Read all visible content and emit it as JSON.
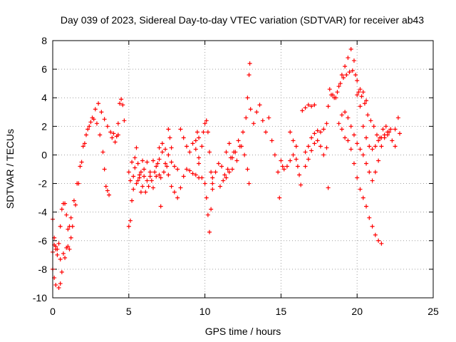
{
  "chart_data": {
    "type": "scatter",
    "title": "Day 039 of 2023, Sidereal Day-to-day VTEC variation (SDTVAR) for receiver ab43",
    "xlabel": "GPS time / hours",
    "ylabel": "SDTVAR / TECUs",
    "xlim": [
      0,
      25
    ],
    "ylim": [
      -10,
      8
    ],
    "xticks": [
      0,
      5,
      10,
      15,
      20,
      25
    ],
    "yticks": [
      -10,
      -8,
      -6,
      -4,
      -2,
      0,
      2,
      4,
      6,
      8
    ],
    "grid": true,
    "marker": "+",
    "marker_color": "#ff0000",
    "series": [
      {
        "name": "SDTVAR",
        "points": [
          [
            0.0,
            -4.5
          ],
          [
            0.1,
            -5.8
          ],
          [
            0.2,
            -6.4
          ],
          [
            0.3,
            -6.6
          ],
          [
            0.4,
            -6.2
          ],
          [
            0.5,
            -5.0
          ],
          [
            0.6,
            -3.8
          ],
          [
            0.7,
            -3.4
          ],
          [
            0.8,
            -3.4
          ],
          [
            0.9,
            -4.2
          ],
          [
            1.0,
            -5.2
          ],
          [
            1.1,
            -5.0
          ],
          [
            1.2,
            -4.4
          ],
          [
            1.4,
            -3.2
          ],
          [
            1.6,
            -2.0
          ],
          [
            1.8,
            -0.8
          ],
          [
            2.0,
            0.6
          ],
          [
            2.2,
            1.4
          ],
          [
            2.4,
            2.0
          ],
          [
            2.6,
            2.6
          ],
          [
            2.8,
            3.2
          ],
          [
            3.0,
            3.6
          ],
          [
            3.2,
            3.0
          ],
          [
            3.4,
            2.5
          ],
          [
            3.6,
            2.0
          ],
          [
            3.8,
            1.6
          ],
          [
            4.0,
            1.5
          ],
          [
            4.2,
            1.3
          ],
          [
            4.3,
            2.2
          ],
          [
            4.4,
            3.6
          ],
          [
            4.5,
            3.9
          ],
          [
            4.6,
            3.5
          ],
          [
            4.7,
            2.4
          ],
          [
            0.0,
            -8.0
          ],
          [
            0.1,
            -8.6
          ],
          [
            0.2,
            -9.1
          ],
          [
            0.4,
            -9.3
          ],
          [
            0.5,
            -9.0
          ],
          [
            0.6,
            -8.2
          ],
          [
            0.8,
            -7.2
          ],
          [
            1.0,
            -6.4
          ],
          [
            1.2,
            -5.8
          ],
          [
            0.0,
            -6.8
          ],
          [
            0.1,
            -6.3
          ],
          [
            0.2,
            -6.6
          ],
          [
            0.3,
            -7.0
          ],
          [
            0.5,
            -7.3
          ],
          [
            0.7,
            -6.9
          ],
          [
            0.9,
            -6.5
          ],
          [
            1.1,
            -6.6
          ],
          [
            1.3,
            -5.0
          ],
          [
            1.5,
            -3.5
          ],
          [
            1.7,
            -2.0
          ],
          [
            1.9,
            -0.5
          ],
          [
            2.1,
            0.8
          ],
          [
            2.3,
            1.8
          ],
          [
            2.5,
            2.3
          ],
          [
            2.7,
            2.5
          ],
          [
            2.9,
            2.2
          ],
          [
            3.1,
            1.4
          ],
          [
            3.3,
            0.2
          ],
          [
            3.4,
            -1.0
          ],
          [
            3.5,
            -2.2
          ],
          [
            3.6,
            -2.5
          ],
          [
            3.7,
            -2.8
          ],
          [
            3.9,
            1.2
          ],
          [
            4.1,
            0.9
          ],
          [
            4.3,
            1.4
          ],
          [
            5.0,
            -5.0
          ],
          [
            5.1,
            -4.6
          ],
          [
            5.2,
            -3.2
          ],
          [
            5.3,
            -1.5
          ],
          [
            5.4,
            -0.2
          ],
          [
            5.5,
            0.5
          ],
          [
            5.6,
            -0.6
          ],
          [
            5.7,
            -1.6
          ],
          [
            5.8,
            -1.2
          ],
          [
            5.9,
            -0.4
          ],
          [
            6.0,
            -1.0
          ],
          [
            6.2,
            -1.8
          ],
          [
            6.4,
            -1.2
          ],
          [
            6.6,
            -0.4
          ],
          [
            6.8,
            -0.8
          ],
          [
            7.0,
            -1.4
          ],
          [
            7.1,
            -3.6
          ],
          [
            5.0,
            -1.2
          ],
          [
            5.1,
            -1.8
          ],
          [
            5.3,
            -2.4
          ],
          [
            5.5,
            -2.0
          ],
          [
            5.7,
            -1.4
          ],
          [
            5.9,
            -2.2
          ],
          [
            6.1,
            -2.6
          ],
          [
            6.3,
            -2.2
          ],
          [
            6.5,
            -1.8
          ],
          [
            6.7,
            -1.2
          ],
          [
            6.9,
            -0.6
          ],
          [
            7.1,
            -1.6
          ],
          [
            7.3,
            -1.2
          ],
          [
            7.5,
            -0.8
          ],
          [
            5.2,
            -0.5
          ],
          [
            5.4,
            -0.9
          ],
          [
            5.6,
            -1.8
          ],
          [
            5.8,
            -2.6
          ],
          [
            6.0,
            -1.5
          ],
          [
            6.2,
            -0.5
          ],
          [
            6.4,
            -1.5
          ],
          [
            6.6,
            -2.3
          ],
          [
            6.8,
            -1.5
          ],
          [
            7.0,
            -0.3
          ],
          [
            7.0,
            0.5
          ],
          [
            7.2,
            0.2
          ],
          [
            7.4,
            -0.6
          ],
          [
            7.6,
            -1.4
          ],
          [
            7.8,
            -2.2
          ],
          [
            8.0,
            -2.6
          ],
          [
            8.2,
            -3.0
          ],
          [
            8.4,
            -2.3
          ],
          [
            8.6,
            -1.5
          ],
          [
            8.8,
            -1.0
          ],
          [
            9.0,
            -1.1
          ],
          [
            9.2,
            -1.3
          ],
          [
            9.4,
            -1.4
          ],
          [
            9.6,
            -1.6
          ],
          [
            7.2,
            0.8
          ],
          [
            7.4,
            0.4
          ],
          [
            7.6,
            0.0
          ],
          [
            7.8,
            -0.5
          ],
          [
            8.0,
            -0.8
          ],
          [
            8.2,
            -1.0
          ],
          [
            7.6,
            1.8
          ],
          [
            7.7,
            1.2
          ],
          [
            7.8,
            0.5
          ],
          [
            8.4,
            1.8
          ],
          [
            8.6,
            1.2
          ],
          [
            8.8,
            0.6
          ],
          [
            9.0,
            0.2
          ],
          [
            9.2,
            0.8
          ],
          [
            9.4,
            0.4
          ],
          [
            9.6,
            -0.6
          ],
          [
            9.8,
            -1.6
          ],
          [
            10.0,
            -2.0
          ],
          [
            10.1,
            -3.0
          ],
          [
            10.2,
            -4.2
          ],
          [
            10.3,
            -5.4
          ],
          [
            10.4,
            -3.8
          ],
          [
            10.5,
            -2.0
          ],
          [
            9.4,
            1.0
          ],
          [
            9.5,
            1.6
          ],
          [
            9.6,
            1.2
          ],
          [
            9.6,
            -0.2
          ],
          [
            9.8,
            0.6
          ],
          [
            9.9,
            1.6
          ],
          [
            10.0,
            2.2
          ],
          [
            10.1,
            2.4
          ],
          [
            10.2,
            1.6
          ],
          [
            10.3,
            0.2
          ],
          [
            10.4,
            -1.2
          ],
          [
            10.5,
            -2.4
          ],
          [
            10.5,
            -1.6
          ],
          [
            10.7,
            -1.2
          ],
          [
            10.9,
            -0.6
          ],
          [
            11.1,
            -0.8
          ],
          [
            11.3,
            -1.4
          ],
          [
            11.5,
            -1.0
          ],
          [
            11.7,
            -0.2
          ],
          [
            11.9,
            0.2
          ],
          [
            12.1,
            -0.4
          ],
          [
            12.3,
            0.6
          ],
          [
            12.5,
            1.6
          ],
          [
            12.7,
            2.6
          ],
          [
            12.8,
            4.0
          ],
          [
            12.9,
            5.6
          ],
          [
            12.95,
            6.4
          ],
          [
            13.0,
            3.2
          ],
          [
            13.2,
            2.2
          ],
          [
            13.4,
            3.0
          ],
          [
            13.6,
            3.5
          ],
          [
            13.8,
            2.4
          ],
          [
            14.0,
            1.6
          ],
          [
            14.2,
            2.6
          ],
          [
            14.4,
            1.0
          ],
          [
            14.6,
            0.0
          ],
          [
            14.8,
            -1.2
          ],
          [
            14.9,
            -3.0
          ],
          [
            11.0,
            -2.2
          ],
          [
            11.2,
            -1.8
          ],
          [
            11.4,
            -1.6
          ],
          [
            11.6,
            -1.2
          ],
          [
            11.8,
            -1.0
          ],
          [
            12.0,
            0.2
          ],
          [
            12.2,
            1.0
          ],
          [
            12.4,
            0.6
          ],
          [
            12.6,
            0.0
          ],
          [
            12.8,
            -1.0
          ],
          [
            12.9,
            -2.0
          ],
          [
            11.4,
            0.2
          ],
          [
            11.6,
            0.8
          ],
          [
            11.8,
            -0.2
          ],
          [
            15.0,
            -0.4
          ],
          [
            15.1,
            -0.8
          ],
          [
            15.2,
            -1.0
          ],
          [
            15.4,
            -0.8
          ],
          [
            15.6,
            -0.4
          ],
          [
            15.8,
            0.0
          ],
          [
            16.0,
            -0.3
          ],
          [
            16.1,
            -0.8
          ],
          [
            16.2,
            -1.4
          ],
          [
            16.3,
            -2.1
          ],
          [
            15.6,
            1.6
          ],
          [
            15.8,
            1.0
          ],
          [
            16.0,
            0.6
          ],
          [
            16.4,
            3.1
          ],
          [
            16.6,
            3.3
          ],
          [
            16.8,
            3.5
          ],
          [
            17.0,
            3.4
          ],
          [
            17.2,
            3.5
          ],
          [
            16.6,
            0.2
          ],
          [
            16.8,
            0.6
          ],
          [
            17.0,
            1.2
          ],
          [
            17.2,
            1.5
          ],
          [
            17.4,
            1.7
          ],
          [
            17.6,
            1.6
          ],
          [
            17.8,
            1.8
          ],
          [
            18.0,
            2.2
          ],
          [
            18.1,
            3.4
          ],
          [
            16.6,
            -0.8
          ],
          [
            16.8,
            -0.3
          ],
          [
            17.0,
            0.3
          ],
          [
            17.2,
            0.8
          ],
          [
            17.4,
            1.0
          ],
          [
            17.6,
            0.6
          ],
          [
            17.8,
            0.0
          ],
          [
            18.0,
            0.5
          ],
          [
            18.2,
            4.6
          ],
          [
            18.4,
            4.2
          ],
          [
            18.6,
            4.0
          ],
          [
            18.8,
            4.8
          ],
          [
            19.0,
            5.6
          ],
          [
            19.2,
            6.2
          ],
          [
            19.4,
            6.8
          ],
          [
            19.6,
            7.4
          ],
          [
            19.8,
            6.6
          ],
          [
            20.0,
            5.2
          ],
          [
            20.2,
            3.4
          ],
          [
            20.4,
            2.0
          ],
          [
            20.6,
            1.2
          ],
          [
            20.8,
            0.6
          ],
          [
            21.0,
            0.4
          ],
          [
            21.2,
            0.6
          ],
          [
            21.4,
            1.0
          ],
          [
            21.6,
            1.2
          ],
          [
            21.8,
            1.4
          ],
          [
            22.0,
            1.6
          ],
          [
            22.2,
            1.8
          ],
          [
            22.5,
            1.8
          ],
          [
            22.8,
            1.5
          ],
          [
            18.3,
            4.2
          ],
          [
            18.5,
            4.0
          ],
          [
            18.7,
            4.4
          ],
          [
            18.9,
            5.0
          ],
          [
            19.1,
            5.4
          ],
          [
            19.3,
            5.6
          ],
          [
            19.5,
            5.8
          ],
          [
            19.7,
            5.9
          ],
          [
            19.9,
            5.6
          ],
          [
            20.1,
            4.4
          ],
          [
            20.3,
            4.1
          ],
          [
            20.5,
            3.6
          ],
          [
            20.7,
            2.8
          ],
          [
            20.9,
            2.4
          ],
          [
            21.1,
            2.0
          ],
          [
            21.3,
            1.4
          ],
          [
            21.5,
            1.2
          ],
          [
            21.7,
            1.8
          ],
          [
            21.9,
            2.0
          ],
          [
            22.1,
            1.6
          ],
          [
            22.3,
            1.0
          ],
          [
            22.5,
            0.6
          ],
          [
            22.7,
            2.6
          ],
          [
            19.0,
            1.8
          ],
          [
            19.2,
            1.2
          ],
          [
            19.4,
            1.0
          ],
          [
            19.6,
            0.4
          ],
          [
            19.8,
            -0.6
          ],
          [
            20.0,
            -1.6
          ],
          [
            20.2,
            -2.4
          ],
          [
            20.4,
            -3.0
          ],
          [
            20.6,
            -3.6
          ],
          [
            20.8,
            -4.4
          ],
          [
            21.0,
            -5.0
          ],
          [
            21.2,
            -5.6
          ],
          [
            21.4,
            -6.0
          ],
          [
            21.6,
            -6.2
          ],
          [
            18.8,
            2.2
          ],
          [
            19.0,
            2.8
          ],
          [
            19.2,
            3.0
          ],
          [
            19.4,
            2.6
          ],
          [
            19.6,
            2.0
          ],
          [
            19.8,
            1.4
          ],
          [
            20.0,
            0.8
          ],
          [
            20.2,
            0.4
          ],
          [
            20.4,
            0.0
          ],
          [
            20.6,
            -0.6
          ],
          [
            20.8,
            -1.2
          ],
          [
            21.0,
            -1.8
          ],
          [
            21.2,
            -1.2
          ],
          [
            21.4,
            -0.4
          ],
          [
            21.6,
            0.6
          ],
          [
            21.8,
            1.2
          ],
          [
            22.0,
            1.4
          ],
          [
            20.0,
            4.2
          ],
          [
            20.2,
            4.6
          ],
          [
            20.4,
            4.4
          ],
          [
            20.6,
            3.8
          ],
          [
            18.1,
            -2.3
          ]
        ]
      }
    ]
  }
}
